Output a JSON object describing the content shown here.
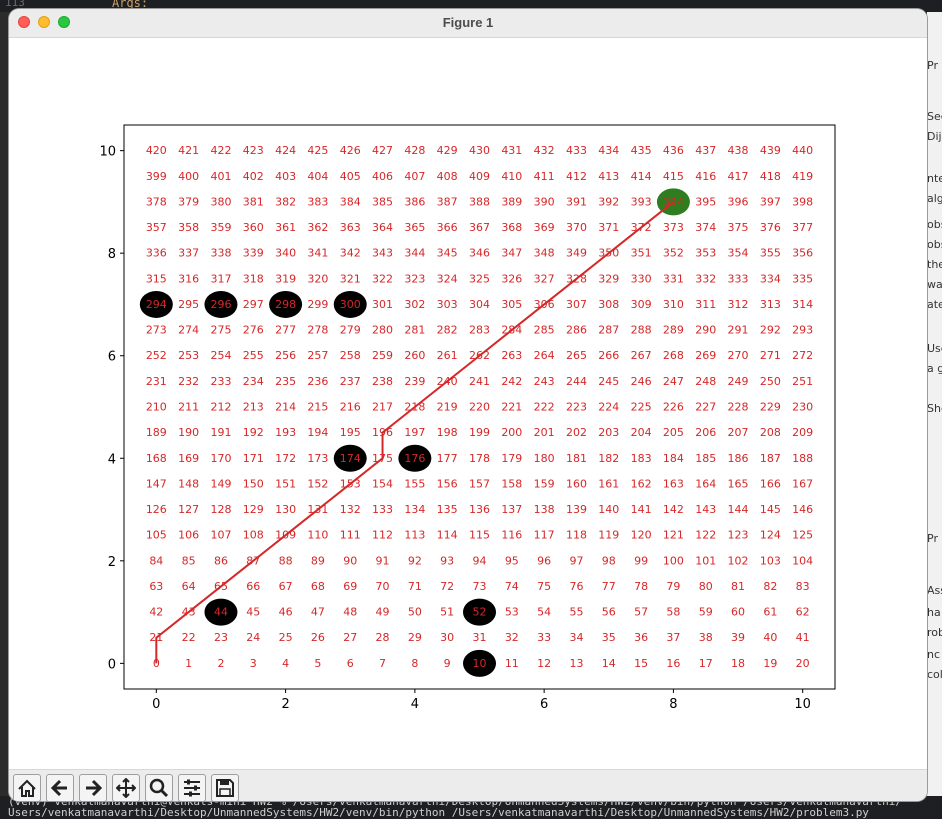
{
  "window": {
    "title": "Figure 1"
  },
  "background": {
    "top_line_number": "113",
    "top_text": "Args:",
    "right_snippets": [
      "Pr",
      "Sec",
      "Dij",
      "nte",
      "alg",
      "obs",
      "obs",
      "the",
      "wa",
      "ate",
      "Use",
      "a g",
      "Sho",
      "Pr",
      "Ass",
      "ha",
      "rob",
      "nc",
      "col"
    ],
    "bottom_lines": [
      "(venv) venkatmanavarthi@Venkats-mini HW2 % /Users/venkatmanavarthi/Desktop/UnmannedSystems/HW2/venv/bin/python /Users/venkatmanavarthi/",
      "Users/venkatmanavarthi/Desktop/UnmannedSystems/HW2/venv/bin/python /Users/venkatmanavarthi/Desktop/UnmannedSystems/HW2/problem3.py"
    ]
  },
  "toolbar": {
    "buttons": [
      {
        "name": "home-button",
        "icon": "home-icon"
      },
      {
        "name": "back-button",
        "icon": "arrow-left-icon"
      },
      {
        "name": "forward-button",
        "icon": "arrow-right-icon"
      },
      {
        "name": "pan-button",
        "icon": "move-icon"
      },
      {
        "name": "zoom-button",
        "icon": "magnifier-icon"
      },
      {
        "name": "subplots-button",
        "icon": "sliders-icon"
      },
      {
        "name": "save-button",
        "icon": "floppy-disk-icon"
      }
    ]
  },
  "chart_data": {
    "type": "scatter",
    "title": "",
    "xlabel": "",
    "ylabel": "",
    "xlim": [
      -0.5,
      10.5
    ],
    "ylim": [
      -0.5,
      10.5
    ],
    "xticks": [
      0,
      2,
      4,
      6,
      8,
      10
    ],
    "yticks": [
      0,
      2,
      4,
      6,
      8,
      10
    ],
    "grid": {
      "x_spacing": 0.5,
      "y_spacing": 0.5,
      "columns": 21,
      "rows": 21,
      "node_indices_start": 0,
      "node_indices_end": 440
    },
    "node_label_color": "#d62728",
    "obstacles": {
      "color": "#000000",
      "points": [
        [
          0,
          7
        ],
        [
          1,
          7
        ],
        [
          2,
          7
        ],
        [
          3,
          7
        ],
        [
          3,
          4
        ],
        [
          4,
          4
        ],
        [
          1,
          1
        ],
        [
          5,
          1
        ],
        [
          5,
          0
        ]
      ]
    },
    "goal": {
      "color": "#2e7d1f",
      "x": 8,
      "y": 9
    },
    "path": {
      "color": "#d62728",
      "x": [
        0,
        0,
        0.5,
        1,
        1.5,
        2,
        2.5,
        3,
        3.5,
        3.5,
        4,
        4.5,
        5,
        5.5,
        6,
        6.5,
        7,
        7.5,
        8
      ],
      "y": [
        0,
        0.5,
        1,
        1.5,
        2,
        2.5,
        3,
        3.5,
        4,
        4.5,
        5,
        5.5,
        6,
        6.5,
        7,
        7.5,
        8,
        8.5,
        9
      ]
    }
  }
}
